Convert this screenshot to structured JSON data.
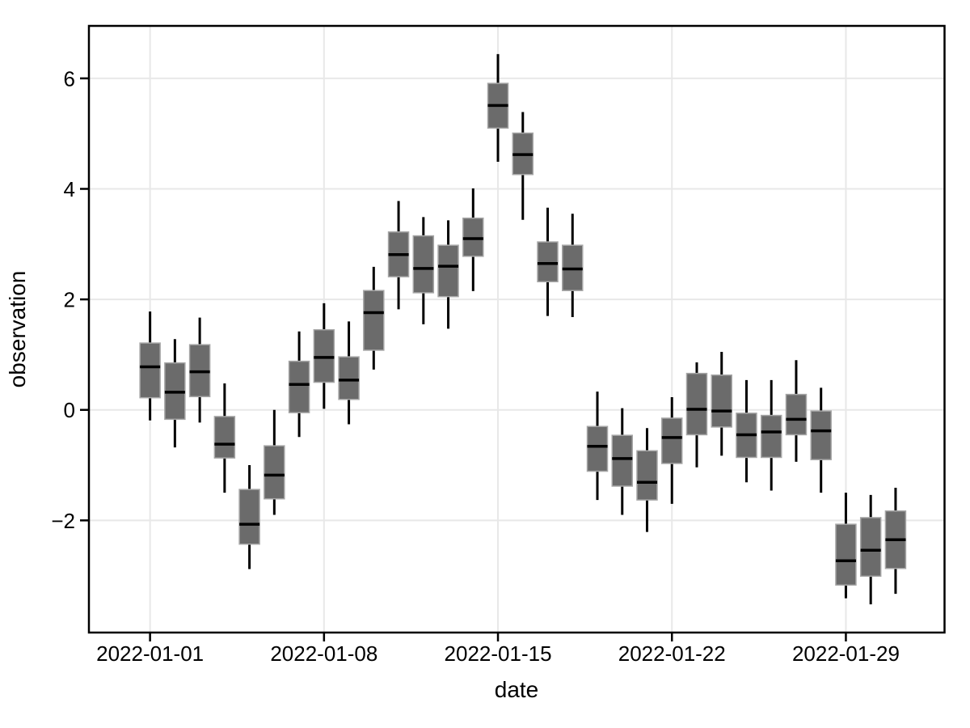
{
  "chart_data": {
    "type": "boxplot",
    "title": "",
    "xlabel": "date",
    "ylabel": "observation",
    "legend_position": "none",
    "grid": true,
    "x_ticks": {
      "days": [
        1,
        8,
        15,
        22,
        29
      ],
      "labels": [
        "2022-01-01",
        "2022-01-08",
        "2022-01-15",
        "2022-01-22",
        "2022-01-29"
      ]
    },
    "y_ticks": {
      "values": [
        -2,
        0,
        2,
        4,
        6
      ],
      "labels": [
        "−2",
        "0",
        "2",
        "4",
        "6"
      ]
    },
    "xlim_days": [
      -1.46,
      32.97
    ],
    "ylim": [
      -4.03,
      6.95
    ],
    "boxes": [
      {
        "date": "2022-01-01",
        "day": 1,
        "low": -0.19,
        "q1": 0.22,
        "median": 0.78,
        "q3": 1.21,
        "high": 1.78
      },
      {
        "date": "2022-01-02",
        "day": 2,
        "low": -0.68,
        "q1": -0.17,
        "median": 0.32,
        "q3": 0.85,
        "high": 1.28
      },
      {
        "date": "2022-01-03",
        "day": 3,
        "low": -0.23,
        "q1": 0.24,
        "median": 0.69,
        "q3": 1.18,
        "high": 1.67
      },
      {
        "date": "2022-01-04",
        "day": 4,
        "low": -1.5,
        "q1": -0.87,
        "median": -0.62,
        "q3": -0.12,
        "high": 0.48
      },
      {
        "date": "2022-01-05",
        "day": 5,
        "low": -2.88,
        "q1": -2.43,
        "median": -2.07,
        "q3": -1.44,
        "high": -1.0
      },
      {
        "date": "2022-01-06",
        "day": 6,
        "low": -1.9,
        "q1": -1.61,
        "median": -1.18,
        "q3": -0.65,
        "high": 0.0
      },
      {
        "date": "2022-01-07",
        "day": 7,
        "low": -0.49,
        "q1": -0.05,
        "median": 0.46,
        "q3": 0.88,
        "high": 1.42
      },
      {
        "date": "2022-01-08",
        "day": 8,
        "low": 0.02,
        "q1": 0.5,
        "median": 0.95,
        "q3": 1.45,
        "high": 1.93
      },
      {
        "date": "2022-01-09",
        "day": 9,
        "low": -0.26,
        "q1": 0.19,
        "median": 0.54,
        "q3": 0.96,
        "high": 1.6
      },
      {
        "date": "2022-01-10",
        "day": 10,
        "low": 0.73,
        "q1": 1.08,
        "median": 1.76,
        "q3": 2.16,
        "high": 2.59
      },
      {
        "date": "2022-01-11",
        "day": 11,
        "low": 1.82,
        "q1": 2.41,
        "median": 2.81,
        "q3": 3.22,
        "high": 3.78
      },
      {
        "date": "2022-01-12",
        "day": 12,
        "low": 1.55,
        "q1": 2.12,
        "median": 2.56,
        "q3": 3.15,
        "high": 3.49
      },
      {
        "date": "2022-01-13",
        "day": 13,
        "low": 1.47,
        "q1": 2.05,
        "median": 2.6,
        "q3": 2.98,
        "high": 3.43
      },
      {
        "date": "2022-01-14",
        "day": 14,
        "low": 2.15,
        "q1": 2.78,
        "median": 3.1,
        "q3": 3.47,
        "high": 4.01
      },
      {
        "date": "2022-01-15",
        "day": 15,
        "low": 4.49,
        "q1": 5.1,
        "median": 5.51,
        "q3": 5.91,
        "high": 6.44
      },
      {
        "date": "2022-01-16",
        "day": 16,
        "low": 3.44,
        "q1": 4.26,
        "median": 4.62,
        "q3": 5.01,
        "high": 5.39
      },
      {
        "date": "2022-01-17",
        "day": 17,
        "low": 1.7,
        "q1": 2.32,
        "median": 2.65,
        "q3": 3.04,
        "high": 3.66
      },
      {
        "date": "2022-01-18",
        "day": 18,
        "low": 1.68,
        "q1": 2.16,
        "median": 2.55,
        "q3": 2.98,
        "high": 3.55
      },
      {
        "date": "2022-01-19",
        "day": 19,
        "low": -1.63,
        "q1": -1.11,
        "median": -0.66,
        "q3": -0.3,
        "high": 0.33
      },
      {
        "date": "2022-01-20",
        "day": 20,
        "low": -1.9,
        "q1": -1.38,
        "median": -0.88,
        "q3": -0.46,
        "high": 0.03
      },
      {
        "date": "2022-01-21",
        "day": 21,
        "low": -2.21,
        "q1": -1.63,
        "median": -1.31,
        "q3": -0.74,
        "high": -0.33
      },
      {
        "date": "2022-01-22",
        "day": 22,
        "low": -1.7,
        "q1": -0.97,
        "median": -0.5,
        "q3": -0.15,
        "high": 0.23
      },
      {
        "date": "2022-01-23",
        "day": 23,
        "low": -1.04,
        "q1": -0.45,
        "median": 0.01,
        "q3": 0.66,
        "high": 0.86
      },
      {
        "date": "2022-01-24",
        "day": 24,
        "low": -0.83,
        "q1": -0.31,
        "median": -0.02,
        "q3": 0.63,
        "high": 1.05
      },
      {
        "date": "2022-01-25",
        "day": 25,
        "low": -1.31,
        "q1": -0.86,
        "median": -0.45,
        "q3": -0.06,
        "high": 0.54
      },
      {
        "date": "2022-01-26",
        "day": 26,
        "low": -1.46,
        "q1": -0.86,
        "median": -0.4,
        "q3": -0.1,
        "high": 0.54
      },
      {
        "date": "2022-01-27",
        "day": 27,
        "low": -0.94,
        "q1": -0.45,
        "median": -0.17,
        "q3": 0.28,
        "high": 0.9
      },
      {
        "date": "2022-01-28",
        "day": 28,
        "low": -1.5,
        "q1": -0.9,
        "median": -0.38,
        "q3": -0.02,
        "high": 0.4
      },
      {
        "date": "2022-01-29",
        "day": 29,
        "low": -3.41,
        "q1": -3.17,
        "median": -2.73,
        "q3": -2.07,
        "high": -1.5
      },
      {
        "date": "2022-01-30",
        "day": 30,
        "low": -3.52,
        "q1": -3.01,
        "median": -2.54,
        "q3": -1.95,
        "high": -1.54
      },
      {
        "date": "2022-01-31",
        "day": 31,
        "low": -3.33,
        "q1": -2.87,
        "median": -2.35,
        "q3": -1.83,
        "high": -1.41
      }
    ],
    "colors": {
      "background": "#FFFFFF",
      "panel_border": "#000000",
      "grid": "#E8E8E8",
      "box_fill": "#6B6B6B",
      "box_stroke": "#A6A6A6",
      "median": "#000000",
      "whisker": "#000000",
      "tick": "#000000",
      "text": "#000000"
    }
  }
}
